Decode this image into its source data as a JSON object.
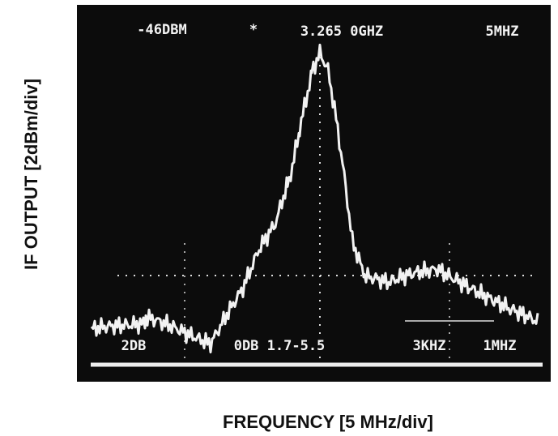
{
  "figure": {
    "screen": {
      "reference_level": "-46DBM",
      "marker": "*",
      "center_frequency": "3.265 0GHZ",
      "span": "5MHZ",
      "scale": "2DB",
      "attenuation": "0DB 1.7-5.5",
      "rbw": "3KHZ",
      "vbw": "1MHZ"
    },
    "y_label": "IF OUTPUT [2dBm/div]",
    "x_label": "FREQUENCY [5 MHz/div]"
  }
}
